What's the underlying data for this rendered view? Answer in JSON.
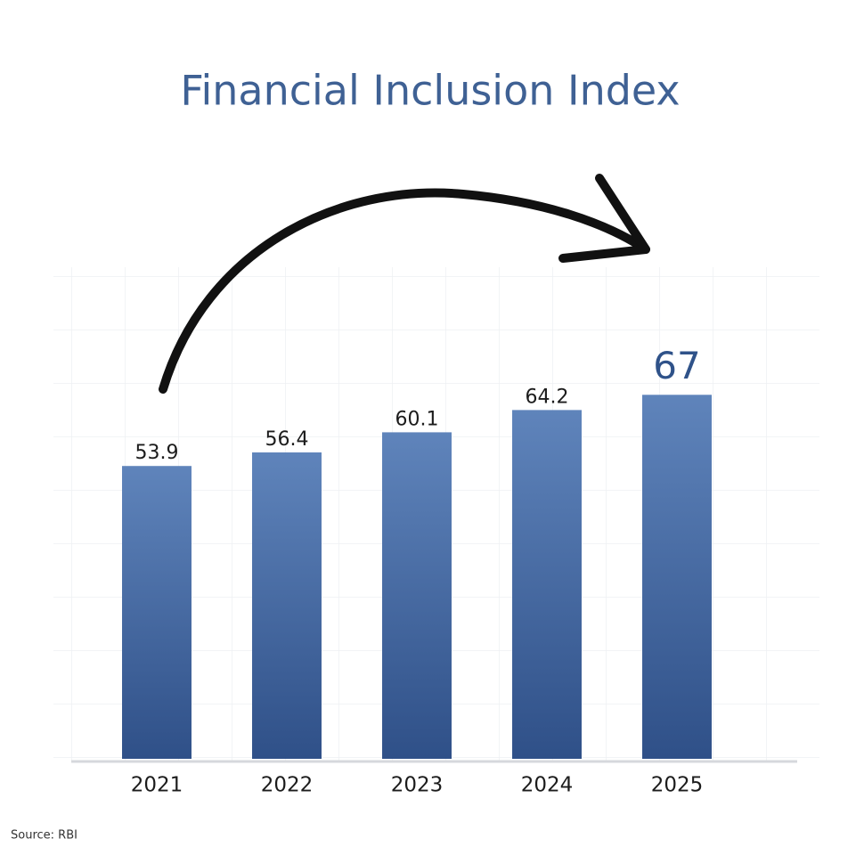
{
  "chart_data": {
    "type": "bar",
    "title": "Financial Inclusion Index",
    "categories": [
      "2021",
      "2022",
      "2023",
      "2024",
      "2025"
    ],
    "values": [
      53.9,
      56.4,
      60.1,
      64.2,
      67
    ],
    "color": "#4a6fa8",
    "ylim": [
      0,
      100
    ],
    "source": "Source: RBI"
  }
}
